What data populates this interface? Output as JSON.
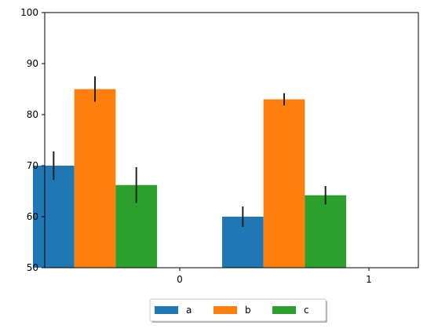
{
  "chart_data": {
    "type": "bar",
    "categories": [
      "0",
      "1"
    ],
    "series": [
      {
        "name": "a",
        "values": [
          70,
          60
        ],
        "errors": [
          2.8,
          2.0
        ],
        "color": "#1f77b4"
      },
      {
        "name": "b",
        "values": [
          85,
          83
        ],
        "errors": [
          2.5,
          1.2
        ],
        "color": "#ff7f0e"
      },
      {
        "name": "c",
        "values": [
          66.2,
          64.2
        ],
        "errors": [
          3.5,
          1.8
        ],
        "color": "#2ca02c"
      }
    ],
    "ylim": [
      50,
      100
    ],
    "yticks": [
      50,
      60,
      70,
      80,
      90,
      100
    ],
    "title": "",
    "xlabel": "",
    "ylabel": "",
    "grid": false,
    "legend_position": "bottom-center"
  }
}
